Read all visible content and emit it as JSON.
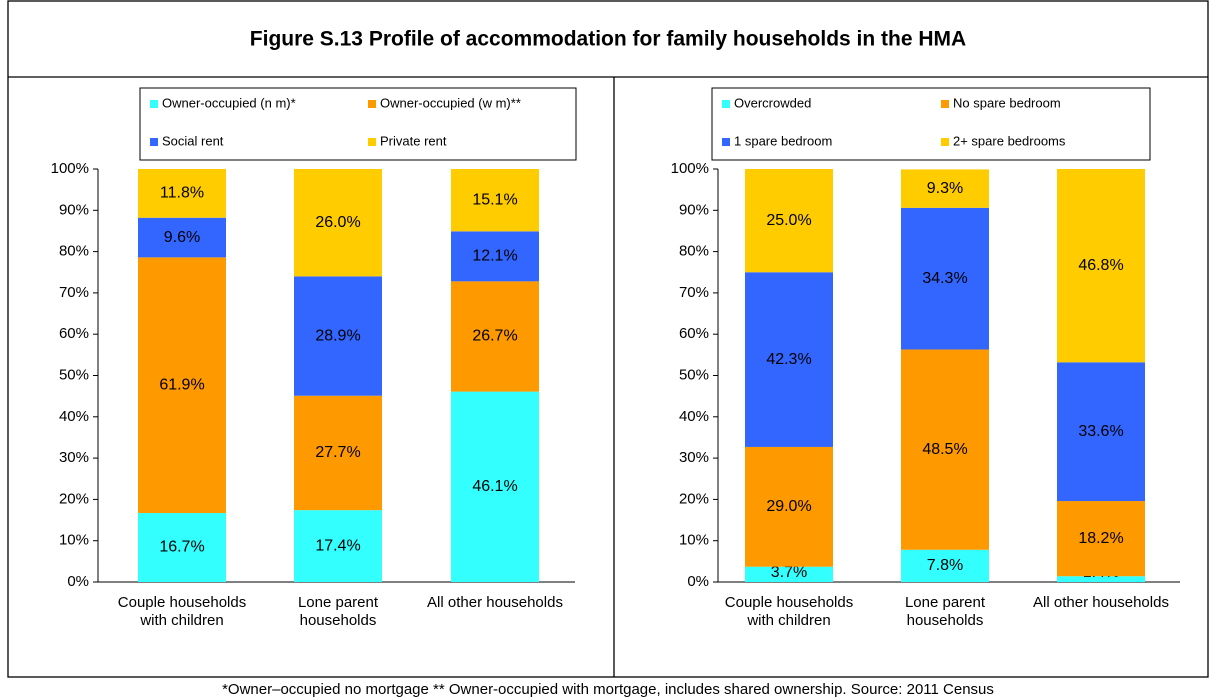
{
  "title": "Figure S.13 Profile of accommodation for family households in the HMA",
  "footnote": "*Owner–occupied no mortgage ** Owner-occupied with mortgage, includes shared ownership. Source: 2011 Census",
  "chart_data": [
    {
      "type": "bar",
      "stacked": true,
      "legend": "top",
      "categories": [
        "Couple households with children",
        "Lone parent households",
        "All other households"
      ],
      "ylim": [
        0,
        100
      ],
      "yticks": [
        {
          "value": 0,
          "label": "0%"
        },
        {
          "value": 10,
          "label": "10%"
        },
        {
          "value": 20,
          "label": "20%"
        },
        {
          "value": 30,
          "label": "30%"
        },
        {
          "value": 40,
          "label": "40%"
        },
        {
          "value": 50,
          "label": "50%"
        },
        {
          "value": 60,
          "label": "60%"
        },
        {
          "value": 70,
          "label": "70%"
        },
        {
          "value": 80,
          "label": "80%"
        },
        {
          "value": 90,
          "label": "90%"
        },
        {
          "value": 100,
          "label": "100%"
        }
      ],
      "series": [
        {
          "name": "Owner-occupied (n m)*",
          "color": "#33ffff",
          "values": [
            16.7,
            17.4,
            46.1
          ],
          "value_labels": [
            "16.7%",
            "17.4%",
            "46.1%"
          ]
        },
        {
          "name": "Owner-occupied (w m)**",
          "color": "#ff9900",
          "values": [
            61.9,
            27.7,
            26.7
          ],
          "value_labels": [
            "61.9%",
            "27.7%",
            "26.7%"
          ]
        },
        {
          "name": "Social rent",
          "color": "#3366ff",
          "values": [
            9.6,
            28.9,
            12.1
          ],
          "value_labels": [
            "9.6%",
            "28.9%",
            "12.1%"
          ]
        },
        {
          "name": "Private rent",
          "color": "#ffcc00",
          "values": [
            11.8,
            26.0,
            15.1
          ],
          "value_labels": [
            "11.8%",
            "26.0%",
            "15.1%"
          ]
        }
      ]
    },
    {
      "type": "bar",
      "stacked": true,
      "legend": "top",
      "categories": [
        "Couple households with children",
        "Lone parent households",
        "All other households"
      ],
      "ylim": [
        0,
        100
      ],
      "yticks": [
        {
          "value": 0,
          "label": "0%"
        },
        {
          "value": 10,
          "label": "10%"
        },
        {
          "value": 20,
          "label": "20%"
        },
        {
          "value": 30,
          "label": "30%"
        },
        {
          "value": 40,
          "label": "40%"
        },
        {
          "value": 50,
          "label": "50%"
        },
        {
          "value": 60,
          "label": "60%"
        },
        {
          "value": 70,
          "label": "70%"
        },
        {
          "value": 80,
          "label": "80%"
        },
        {
          "value": 90,
          "label": "90%"
        },
        {
          "value": 100,
          "label": "100%"
        }
      ],
      "series": [
        {
          "name": "Overcrowded",
          "color": "#33ffff",
          "values": [
            3.7,
            7.8,
            1.4
          ],
          "value_labels": [
            "3.7%",
            "7.8%",
            "1.4%"
          ]
        },
        {
          "name": "No spare bedroom",
          "color": "#ff9900",
          "values": [
            29.0,
            48.5,
            18.2
          ],
          "value_labels": [
            "29.0%",
            "48.5%",
            "18.2%"
          ]
        },
        {
          "name": "1 spare bedroom",
          "color": "#3366ff",
          "values": [
            42.3,
            34.3,
            33.6
          ],
          "value_labels": [
            "42.3%",
            "34.3%",
            "33.6%"
          ]
        },
        {
          "name": "2+ spare bedrooms",
          "color": "#ffcc00",
          "values": [
            25.0,
            9.3,
            46.8
          ],
          "value_labels": [
            "25.0%",
            "9.3%",
            "46.8%"
          ]
        }
      ]
    }
  ]
}
